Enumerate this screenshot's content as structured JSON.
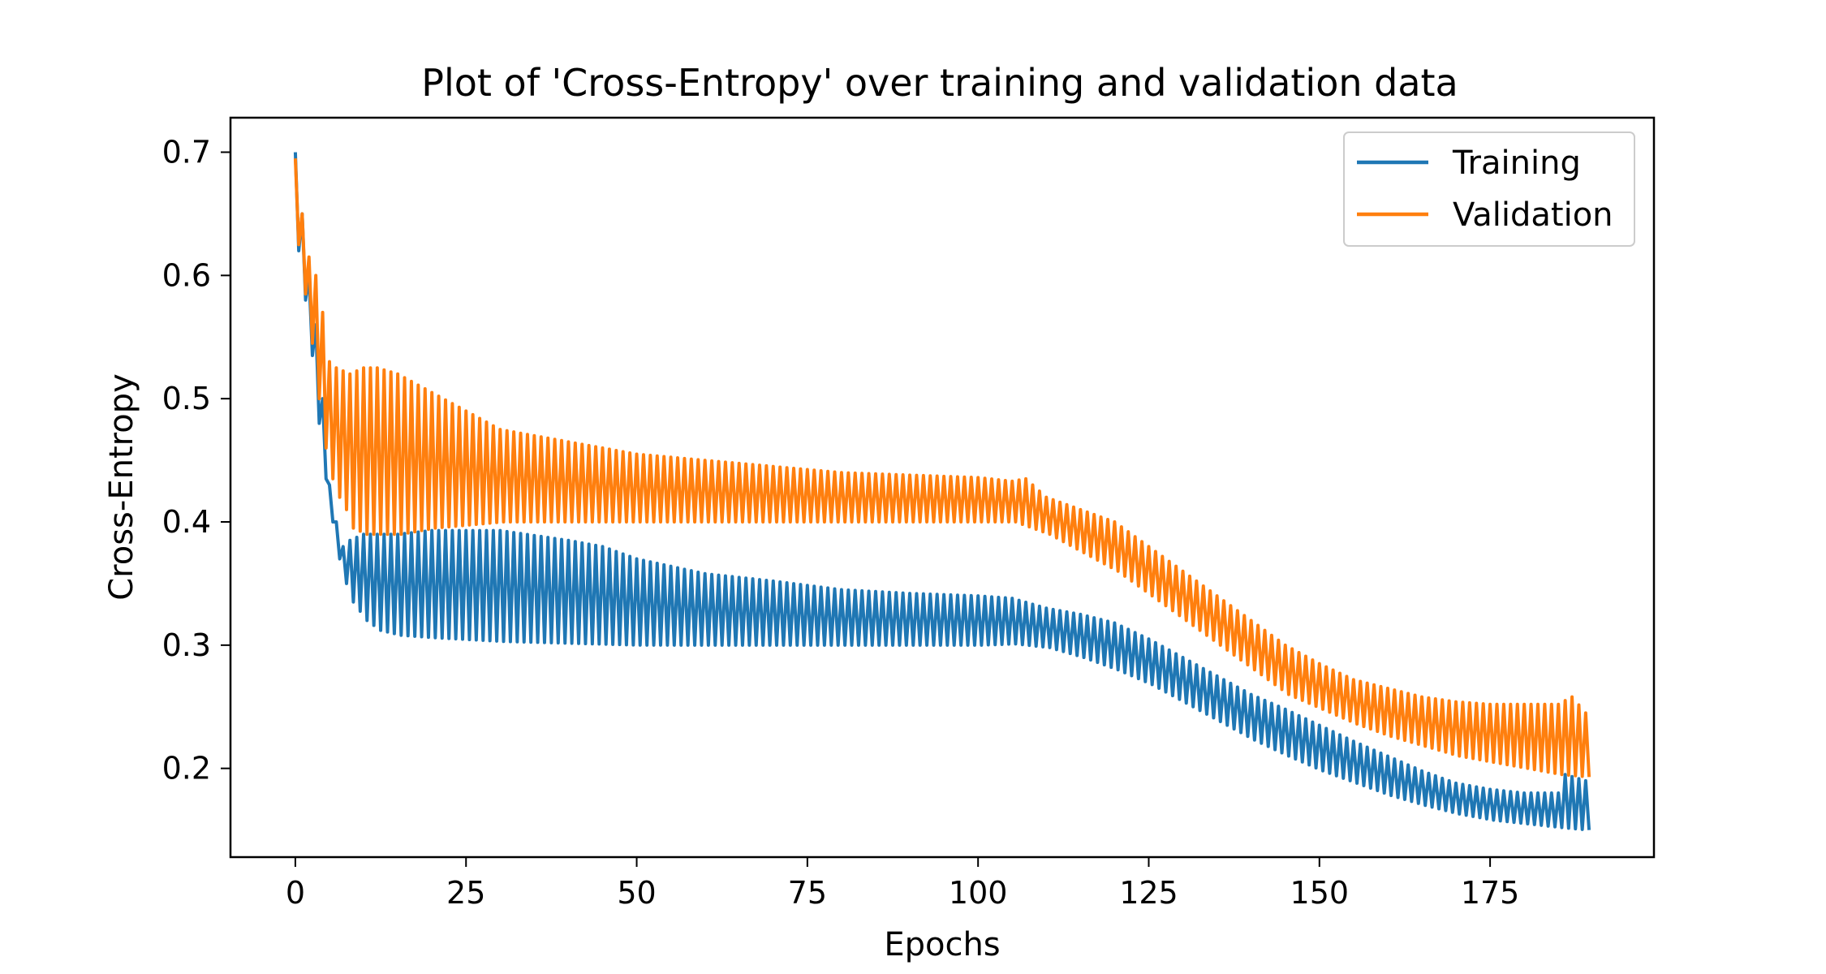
{
  "chart_data": {
    "type": "line",
    "title": "Plot of 'Cross-Entropy' over training and validation data",
    "xlabel": "Epochs",
    "ylabel": "Cross-Entropy",
    "xlim": [
      -9.5,
      199
    ],
    "ylim": [
      0.128,
      0.728
    ],
    "x_ticks": [
      0,
      25,
      50,
      75,
      100,
      125,
      150,
      175
    ],
    "x_tick_labels": [
      "0",
      "25",
      "50",
      "75",
      "100",
      "125",
      "150",
      "175"
    ],
    "y_ticks": [
      0.2,
      0.3,
      0.4,
      0.5,
      0.6,
      0.7
    ],
    "y_tick_labels": [
      "0.2",
      "0.3",
      "0.4",
      "0.5",
      "0.6",
      "0.7"
    ],
    "grid": false,
    "legend_position": "top-right",
    "x_domain": [
      0,
      189
    ],
    "oscillation_step": 1,
    "series": [
      {
        "name": "Training",
        "color": "#1f77b4",
        "upper_envelope": {
          "x": [
            0,
            1,
            2,
            3,
            4,
            5,
            6,
            7,
            8,
            10,
            15,
            20,
            30,
            40,
            45,
            50,
            60,
            70,
            80,
            90,
            100,
            105,
            110,
            115,
            120,
            125,
            130,
            135,
            140,
            145,
            150,
            155,
            160,
            165,
            170,
            175,
            180,
            185,
            186,
            189
          ],
          "y": [
            0.7,
            0.65,
            0.6,
            0.56,
            0.5,
            0.43,
            0.4,
            0.38,
            0.385,
            0.39,
            0.39,
            0.393,
            0.393,
            0.385,
            0.38,
            0.37,
            0.358,
            0.352,
            0.345,
            0.342,
            0.34,
            0.338,
            0.33,
            0.325,
            0.318,
            0.305,
            0.29,
            0.275,
            0.26,
            0.248,
            0.235,
            0.222,
            0.21,
            0.198,
            0.188,
            0.183,
            0.18,
            0.18,
            0.195,
            0.19
          ]
        },
        "lower_envelope": {
          "x": [
            0,
            1,
            2,
            3,
            4,
            5,
            6,
            7,
            8,
            10,
            12,
            15,
            20,
            30,
            50,
            60,
            70,
            80,
            90,
            100,
            105,
            110,
            115,
            120,
            125,
            130,
            135,
            140,
            145,
            150,
            155,
            160,
            165,
            170,
            175,
            180,
            185,
            189
          ],
          "y": [
            0.62,
            0.58,
            0.535,
            0.48,
            0.435,
            0.4,
            0.37,
            0.35,
            0.335,
            0.32,
            0.312,
            0.308,
            0.306,
            0.303,
            0.3,
            0.3,
            0.3,
            0.3,
            0.3,
            0.3,
            0.301,
            0.298,
            0.29,
            0.28,
            0.268,
            0.253,
            0.238,
            0.223,
            0.21,
            0.198,
            0.188,
            0.178,
            0.17,
            0.163,
            0.158,
            0.155,
            0.152,
            0.15
          ]
        }
      },
      {
        "name": "Validation",
        "color": "#ff7f0e",
        "upper_envelope": {
          "x": [
            0,
            1,
            2,
            3,
            4,
            5,
            6,
            8,
            10,
            12,
            15,
            20,
            25,
            30,
            40,
            50,
            60,
            70,
            80,
            90,
            100,
            105,
            107,
            110,
            115,
            120,
            125,
            130,
            135,
            140,
            145,
            150,
            155,
            160,
            165,
            170,
            175,
            180,
            185,
            187,
            189
          ],
          "y": [
            0.695,
            0.65,
            0.615,
            0.6,
            0.57,
            0.53,
            0.525,
            0.52,
            0.525,
            0.525,
            0.52,
            0.505,
            0.49,
            0.475,
            0.465,
            0.455,
            0.45,
            0.445,
            0.44,
            0.438,
            0.436,
            0.433,
            0.435,
            0.42,
            0.41,
            0.4,
            0.38,
            0.36,
            0.34,
            0.32,
            0.3,
            0.285,
            0.272,
            0.265,
            0.258,
            0.254,
            0.252,
            0.252,
            0.252,
            0.258,
            0.245
          ]
        },
        "lower_envelope": {
          "x": [
            0,
            1,
            2,
            3,
            4,
            5,
            6,
            7,
            8,
            10,
            15,
            20,
            30,
            40,
            50,
            60,
            70,
            80,
            90,
            100,
            105,
            110,
            115,
            120,
            125,
            130,
            135,
            140,
            145,
            150,
            155,
            160,
            165,
            170,
            175,
            180,
            185,
            189
          ],
          "y": [
            0.625,
            0.585,
            0.545,
            0.5,
            0.46,
            0.435,
            0.42,
            0.41,
            0.395,
            0.39,
            0.39,
            0.395,
            0.4,
            0.4,
            0.4,
            0.4,
            0.4,
            0.4,
            0.4,
            0.4,
            0.4,
            0.39,
            0.375,
            0.36,
            0.34,
            0.32,
            0.3,
            0.28,
            0.26,
            0.248,
            0.236,
            0.226,
            0.218,
            0.21,
            0.205,
            0.2,
            0.195,
            0.193
          ]
        }
      }
    ]
  }
}
